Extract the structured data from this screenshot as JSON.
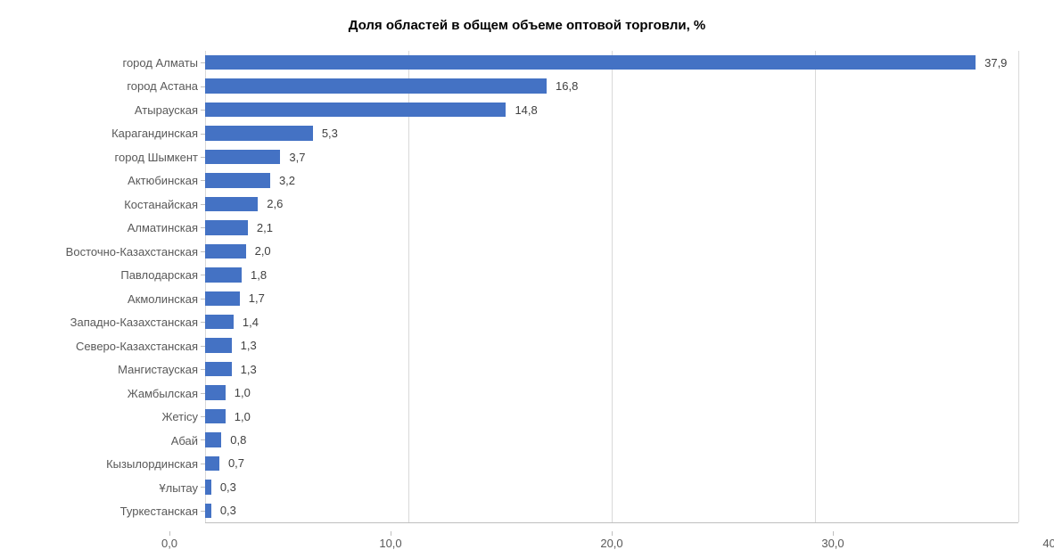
{
  "chart": {
    "type": "bar-horizontal",
    "title": "Доля областей в общем объеме оптовой торговли, %",
    "title_fontsize": 15,
    "title_color": "#000000",
    "background_color": "#ffffff",
    "bar_color": "#4472c4",
    "grid_color": "#d9d9d9",
    "axis_color": "#bfbfbf",
    "label_color": "#595959",
    "value_label_color": "#404040",
    "label_fontsize": 13,
    "xlim": [
      0,
      40
    ],
    "xtick_step": 10,
    "xticks": [
      "0,0",
      "10,0",
      "20,0",
      "30,0",
      "40,0"
    ],
    "categories": [
      "город Алматы",
      "город Астана",
      "Атырауская",
      "Карагандинская",
      "город Шымкент",
      "Актюбинская",
      "Костанайская",
      "Алматинская",
      "Восточно-Казахстанская",
      "Павлодарская",
      "Акмолинская",
      "Западно-Казахстанская",
      "Северо-Казахстанская",
      "Мангистауская",
      "Жамбылская",
      "Жетісу",
      "Абай",
      "Кызылординская",
      "Ұлытау",
      "Туркестанская"
    ],
    "values": [
      37.9,
      16.8,
      14.8,
      5.3,
      3.7,
      3.2,
      2.6,
      2.1,
      2.0,
      1.8,
      1.7,
      1.4,
      1.3,
      1.3,
      1.0,
      1.0,
      0.8,
      0.7,
      0.3,
      0.3
    ],
    "value_labels": [
      "37,9",
      "16,8",
      "14,8",
      "5,3",
      "3,7",
      "3,2",
      "2,6",
      "2,1",
      "2,0",
      "1,8",
      "1,7",
      "1,4",
      "1,3",
      "1,3",
      "1,0",
      "1,0",
      "0,8",
      "0,7",
      "0,3",
      "0,3"
    ]
  }
}
